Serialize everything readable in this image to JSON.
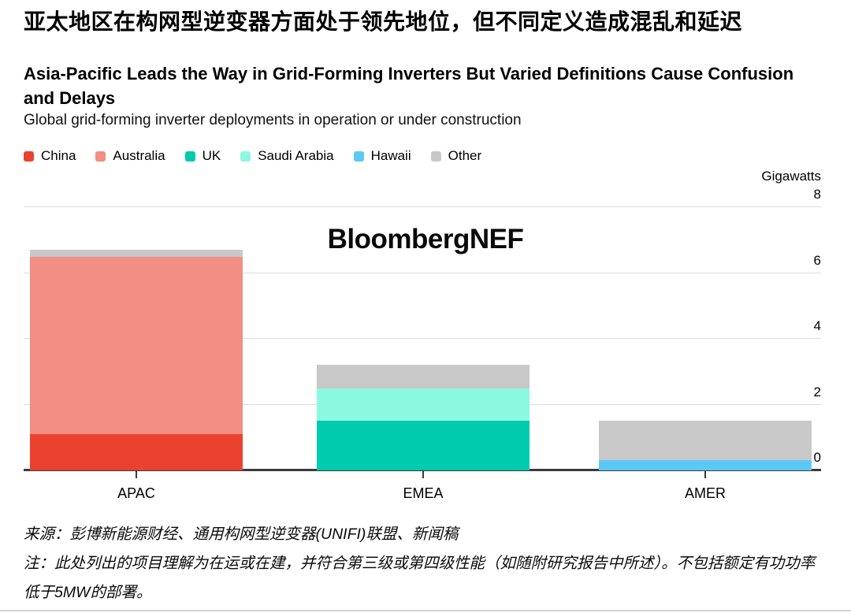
{
  "header": {
    "title_zh": "亚太地区在构网型逆变器方面处于领先地位，但不同定义造成混乱和延迟",
    "title_en": "Asia-Pacific Leads the Way in Grid-Forming Inverters But Varied Definitions Cause Confusion and Delays",
    "subtitle": "Global grid-forming inverter deployments in operation or under construction"
  },
  "watermark": "BloombergNEF",
  "chart_data": {
    "type": "bar",
    "stacked": true,
    "title": "Global grid-forming inverter deployments in operation or under construction",
    "unit_label": "Gigawatts",
    "categories": [
      "APAC",
      "EMEA",
      "AMER"
    ],
    "series": [
      {
        "name": "China",
        "color": "#e9432f",
        "values": [
          1.1,
          0,
          0
        ]
      },
      {
        "name": "Australia",
        "color": "#f28e83",
        "values": [
          5.4,
          0,
          0
        ]
      },
      {
        "name": "UK",
        "color": "#00cbae",
        "values": [
          0,
          1.5,
          0
        ]
      },
      {
        "name": "Saudi Arabia",
        "color": "#8bf9df",
        "values": [
          0,
          1.0,
          0
        ]
      },
      {
        "name": "Hawaii",
        "color": "#5cc8f5",
        "values": [
          0,
          0,
          0.3
        ]
      },
      {
        "name": "Other",
        "color": "#c8c8c8",
        "values": [
          0.2,
          0.7,
          1.2
        ]
      }
    ],
    "ylim": [
      0,
      8
    ],
    "yticks": [
      0,
      2,
      4,
      6,
      8
    ],
    "ylabel": "Gigawatts",
    "grid": "horizontal",
    "axis_side": "right",
    "legend_position": "top-left"
  },
  "footer": {
    "source": "来源：彭博新能源财经、通用构网型逆变器(UNIFI)联盟、新闻稿",
    "note": "注：此处列出的项目理解为在运或在建，并符合第三级或第四级性能（如随附研究报告中所述）。不包括额定有功功率低于5MW的部署。"
  },
  "colors": {
    "gridline": "#dcdcdc",
    "baseline": "#3a3a3a"
  }
}
